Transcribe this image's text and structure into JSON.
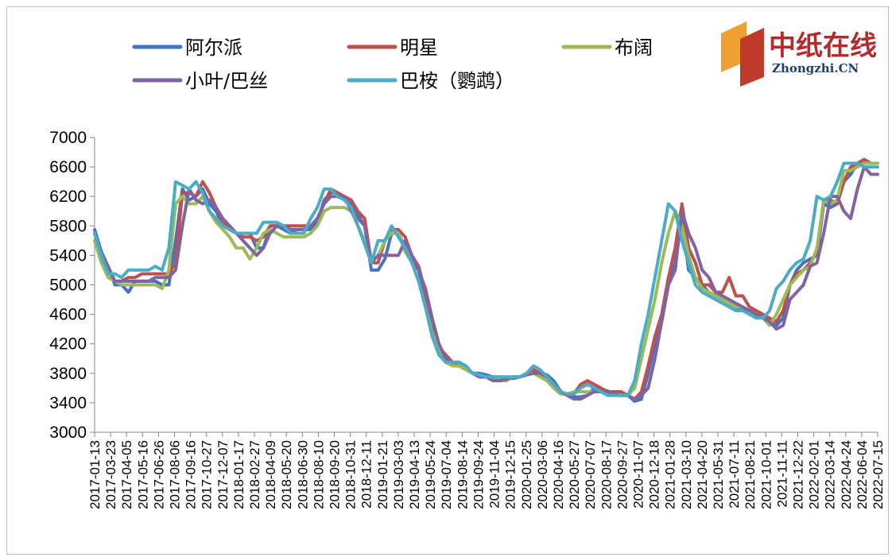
{
  "chart_data": {
    "type": "line",
    "title": "",
    "xlabel": "",
    "ylabel": "",
    "ylim": [
      3000,
      7000
    ],
    "yticks": [
      3000,
      3400,
      3800,
      4200,
      4600,
      5000,
      5400,
      5800,
      6200,
      6600,
      7000
    ],
    "legend_position": "top",
    "grid": false,
    "x_tick_labels": [
      "2017-01-13",
      "2017-03-23",
      "2017-04-05",
      "2017-05-16",
      "2017-06-26",
      "2017-08-06",
      "2017-09-16",
      "2017-10-27",
      "2017-12-07",
      "2018-01-17",
      "2018-02-27",
      "2018-04-09",
      "2018-05-20",
      "2018-06-30",
      "2018-08-10",
      "2018-09-20",
      "2018-10-31",
      "2018-12-11",
      "2019-01-21",
      "2019-03-03",
      "2019-04-13",
      "2019-05-24",
      "2019-07-04",
      "2019-08-14",
      "2019-09-24",
      "2019-11-04",
      "2019-12-15",
      "2020-01-25",
      "2020-03-06",
      "2020-04-16",
      "2020-05-27",
      "2020-07-07",
      "2020-08-17",
      "2020-09-27",
      "2020-11-07",
      "2020-12-18",
      "2021-01-28",
      "2021-03-10",
      "2021-04-20",
      "2021-05-31",
      "2021-07-11",
      "2021-08-21",
      "2021-10-01",
      "2021-11-11",
      "2021-12-22",
      "2022-02-01",
      "2022-03-14",
      "2022-04-24",
      "2022-06-04",
      "2022-07-15"
    ],
    "series": [
      {
        "name": "阿尔派",
        "color": "#4472c4",
        "values": [
          5750,
          5450,
          5250,
          5000,
          5000,
          4900,
          5050,
          5050,
          5050,
          5050,
          5000,
          5000,
          5600,
          6300,
          6150,
          6200,
          6300,
          6100,
          6000,
          5800,
          5750,
          5700,
          5700,
          5700,
          5500,
          5500,
          5800,
          5800,
          5750,
          5700,
          5750,
          5750,
          5750,
          5850,
          6150,
          6250,
          6250,
          6150,
          6100,
          5950,
          5800,
          5200,
          5200,
          5350,
          5700,
          5700,
          5500,
          5300,
          5200,
          4800,
          4400,
          4150,
          4050,
          3950,
          3900,
          3850,
          3800,
          3800,
          3780,
          3750,
          3750,
          3730,
          3730,
          3750,
          3780,
          3800,
          3800,
          3780,
          3700,
          3560,
          3500,
          3480,
          3480,
          3500,
          3600,
          3580,
          3560,
          3520,
          3500,
          3500,
          3420,
          3450,
          3800,
          4200,
          4500,
          5000,
          5300,
          5900,
          5200,
          5100,
          5000,
          4900,
          4850,
          4800,
          4750,
          4700,
          4650,
          4650,
          4650,
          4600,
          4500,
          4450,
          4550,
          5000,
          5200,
          5300,
          5350,
          5400,
          6100,
          6050,
          6100,
          6400,
          6500,
          6650,
          6700,
          6650,
          6650
        ]
      },
      {
        "name": "明星",
        "color": "#c0504d",
        "values": [
          5700,
          5400,
          5200,
          5050,
          5050,
          5100,
          5100,
          5150,
          5150,
          5150,
          5150,
          5150,
          5300,
          6250,
          6250,
          6200,
          6400,
          6250,
          6050,
          5850,
          5800,
          5700,
          5650,
          5650,
          5600,
          5650,
          5800,
          5800,
          5800,
          5800,
          5800,
          5800,
          5800,
          5900,
          6100,
          6300,
          6250,
          6200,
          6150,
          6000,
          5900,
          5300,
          5300,
          5600,
          5750,
          5750,
          5650,
          5400,
          5250,
          4900,
          4450,
          4150,
          4050,
          3950,
          3900,
          3850,
          3800,
          3750,
          3750,
          3750,
          3750,
          3750,
          3750,
          3750,
          3800,
          3850,
          3800,
          3750,
          3650,
          3550,
          3500,
          3520,
          3650,
          3700,
          3650,
          3600,
          3550,
          3550,
          3550,
          3500,
          3450,
          3550,
          3900,
          4300,
          4600,
          5100,
          5500,
          6100,
          5500,
          5300,
          5000,
          5000,
          4900,
          4900,
          5100,
          4850,
          4850,
          4700,
          4650,
          4600,
          4550,
          4500,
          4650,
          5000,
          5150,
          5200,
          5300,
          5450,
          6150,
          6150,
          6100,
          6400,
          6600,
          6650,
          6700,
          6650,
          6650
        ]
      },
      {
        "name": "布阔",
        "color": "#9bbb59",
        "values": [
          5600,
          5300,
          5100,
          5050,
          5000,
          5000,
          5000,
          5000,
          5000,
          5000,
          4950,
          5200,
          6100,
          6200,
          6100,
          6100,
          6200,
          6000,
          5850,
          5750,
          5650,
          5500,
          5500,
          5350,
          5500,
          5700,
          5750,
          5700,
          5650,
          5650,
          5650,
          5650,
          5700,
          5800,
          6000,
          6050,
          6050,
          6050,
          6000,
          5800,
          5600,
          5300,
          5400,
          5600,
          5700,
          5700,
          5450,
          5300,
          5050,
          4700,
          4350,
          4100,
          3950,
          3900,
          3900,
          3850,
          3800,
          3750,
          3750,
          3750,
          3700,
          3700,
          3750,
          3750,
          3800,
          3800,
          3750,
          3700,
          3600,
          3520,
          3520,
          3550,
          3550,
          3550,
          3550,
          3550,
          3500,
          3500,
          3500,
          3500,
          3600,
          4000,
          4400,
          4800,
          5300,
          5700,
          6000,
          5800,
          5400,
          5100,
          4950,
          4900,
          4850,
          4800,
          4750,
          4700,
          4700,
          4650,
          4600,
          4550,
          4450,
          4600,
          4800,
          5000,
          5100,
          5200,
          5250,
          5500,
          6150,
          6100,
          6150,
          6550,
          6550,
          6600,
          6650,
          6650,
          6650
        ]
      },
      {
        "name": "小叶/巴丝",
        "color": "#8064a2",
        "values": [
          5700,
          5400,
          5250,
          5050,
          5050,
          5050,
          5050,
          5050,
          5050,
          5100,
          5100,
          5100,
          5200,
          5800,
          6300,
          6150,
          6100,
          6150,
          6050,
          5900,
          5800,
          5700,
          5600,
          5500,
          5400,
          5500,
          5700,
          5800,
          5800,
          5750,
          5750,
          5750,
          5800,
          5900,
          6100,
          6200,
          6200,
          6200,
          6000,
          5900,
          5800,
          5300,
          5400,
          5400,
          5400,
          5400,
          5600,
          5400,
          5200,
          4950,
          4550,
          4200,
          4000,
          3950,
          3950,
          3900,
          3800,
          3750,
          3750,
          3700,
          3700,
          3720,
          3750,
          3750,
          3780,
          3800,
          3800,
          3750,
          3650,
          3550,
          3500,
          3450,
          3450,
          3500,
          3550,
          3550,
          3550,
          3520,
          3500,
          3500,
          3450,
          3500,
          3600,
          4000,
          4500,
          5000,
          5200,
          6000,
          5700,
          5500,
          5200,
          5100,
          4900,
          4850,
          4800,
          4750,
          4700,
          4650,
          4600,
          4550,
          4500,
          4400,
          4450,
          4800,
          4900,
          5000,
          5250,
          5300,
          5700,
          6200,
          6200,
          6000,
          5900,
          6300,
          6600,
          6500,
          6500
        ]
      },
      {
        "name": "巴桉（鹦鹉）",
        "color": "#4bacc6",
        "values": [
          5700,
          5400,
          5150,
          5150,
          5100,
          5200,
          5200,
          5200,
          5200,
          5250,
          5200,
          5500,
          6400,
          6350,
          6300,
          6400,
          6250,
          6000,
          5900,
          5800,
          5750,
          5700,
          5700,
          5700,
          5700,
          5850,
          5850,
          5850,
          5800,
          5700,
          5700,
          5700,
          5900,
          6050,
          6300,
          6300,
          6200,
          6150,
          6050,
          5800,
          5550,
          5300,
          5600,
          5600,
          5800,
          5650,
          5500,
          5300,
          5050,
          4700,
          4300,
          4050,
          3950,
          3950,
          3950,
          3900,
          3800,
          3780,
          3750,
          3750,
          3750,
          3750,
          3750,
          3750,
          3800,
          3900,
          3850,
          3750,
          3650,
          3550,
          3520,
          3520,
          3600,
          3650,
          3600,
          3550,
          3500,
          3500,
          3500,
          3500,
          3700,
          4200,
          4600,
          5100,
          5600,
          6100,
          6000,
          5600,
          5300,
          5000,
          4900,
          4850,
          4800,
          4750,
          4700,
          4650,
          4650,
          4600,
          4550,
          4550,
          4650,
          4950,
          5050,
          5200,
          5300,
          5350,
          5600,
          6200,
          6150,
          6200,
          6400,
          6650,
          6650,
          6650,
          6600,
          6600,
          6600
        ]
      }
    ]
  },
  "logo": {
    "text_cn": "中纸在线",
    "text_en": "Zhongzhi.CN"
  }
}
